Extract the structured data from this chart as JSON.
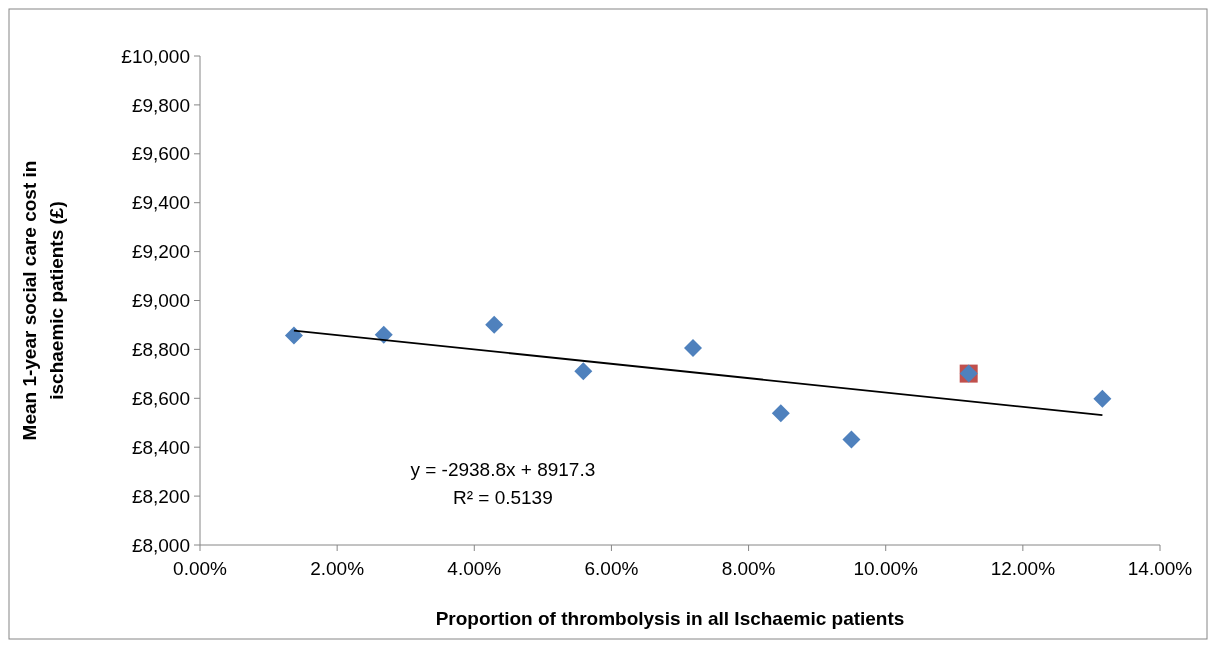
{
  "chart_data": {
    "type": "scatter",
    "xlabel": "Proportion of thrombolysis in all Ischaemic patients",
    "ylabel": "Mean 1-year social care cost in ischaemic patients (£)",
    "x": [
      1.37,
      2.68,
      4.29,
      5.59,
      7.19,
      8.47,
      9.5,
      11.21,
      13.16
    ],
    "series": [
      {
        "color": "#c0504d",
        "marker": "square",
        "x": [
          11.21
        ],
        "values": [
          8701
        ]
      },
      {
        "color": "#4f81bd",
        "marker": "diamond",
        "values": [
          8857,
          8860,
          8901,
          8711,
          8806,
          8539,
          8431,
          8701,
          8598
        ]
      },
      {
        "type": "line",
        "color": "#000000",
        "marker": "none",
        "x": [
          1.37,
          13.16
        ],
        "values": [
          8877,
          8531
        ]
      }
    ],
    "xlim": [
      0,
      14
    ],
    "xticks": [
      {
        "value": 0,
        "label": "0.00%"
      },
      {
        "value": 2,
        "label": "2.00%"
      },
      {
        "value": 4,
        "label": "4.00%"
      },
      {
        "value": 6,
        "label": "6.00%"
      },
      {
        "value": 8,
        "label": "8.00%"
      },
      {
        "value": 10,
        "label": "10.00%"
      },
      {
        "value": 12,
        "label": "12.00%"
      },
      {
        "value": 14,
        "label": "14.00%"
      }
    ],
    "ylim": [
      8000,
      10000
    ],
    "yticks": [
      {
        "value": 8000,
        "label": "£8,000"
      },
      {
        "value": 8200,
        "label": "£8,200"
      },
      {
        "value": 8400,
        "label": "£8,400"
      },
      {
        "value": 8600,
        "label": "£8,600"
      },
      {
        "value": 8800,
        "label": "£8,800"
      },
      {
        "value": 9000,
        "label": "£9,000"
      },
      {
        "value": 9200,
        "label": "£9,200"
      },
      {
        "value": 9400,
        "label": "£9,400"
      },
      {
        "value": 9600,
        "label": "£9,600"
      },
      {
        "value": 9800,
        "label": "£9,800"
      },
      {
        "value": 10000,
        "label": "£10,000"
      }
    ],
    "annotations": [
      "y = -2938.8x + 8917.3",
      "R² = 0.5139"
    ],
    "grid": false
  }
}
